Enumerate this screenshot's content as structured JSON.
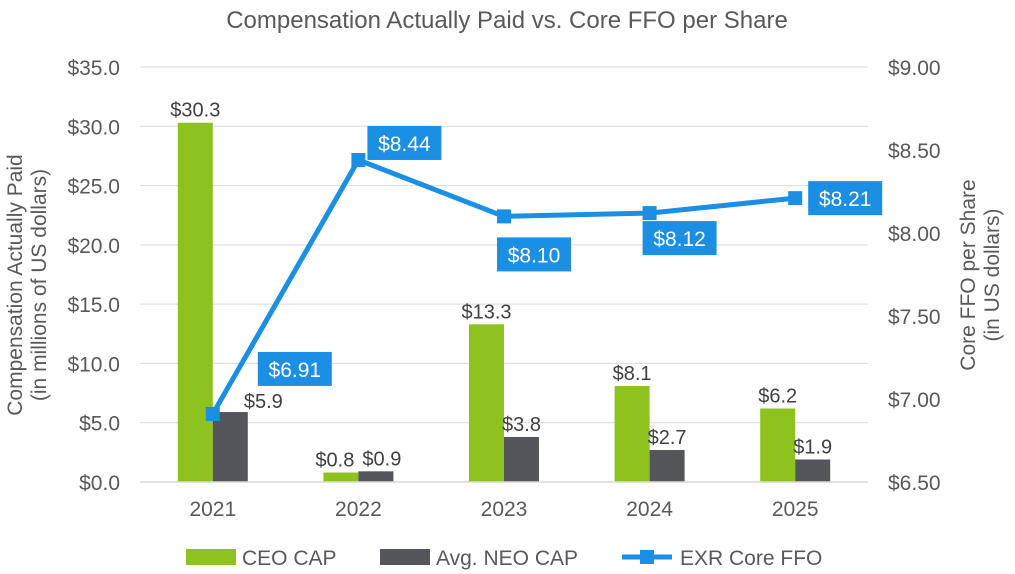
{
  "chart_data": {
    "type": "bar",
    "title": "Compensation Actually Paid vs. Core FFO per Share",
    "categories": [
      "2021",
      "2022",
      "2023",
      "2024",
      "2025"
    ],
    "ylabel": "Compensation Actually Paid\n(in millions of US dollars)",
    "y2label": "Core FFO per Share\n(in US dollars)",
    "ylim": [
      0,
      35
    ],
    "y_ticks": [
      0,
      5,
      10,
      15,
      20,
      25,
      30,
      35
    ],
    "y_tick_labels": [
      "$0.0",
      "$5.0",
      "$10.0",
      "$15.0",
      "$20.0",
      "$25.0",
      "$30.0",
      "$35.0"
    ],
    "y2lim": [
      6.5,
      9.0
    ],
    "y2_ticks": [
      6.5,
      7.0,
      7.5,
      8.0,
      8.5,
      9.0
    ],
    "y2_tick_labels": [
      "$6.50",
      "$7.00",
      "$7.50",
      "$8.00",
      "$8.50",
      "$9.00"
    ],
    "grid": true,
    "legend": "bottom",
    "series": [
      {
        "name": "CEO CAP",
        "kind": "bar",
        "axis": "left",
        "color": "#8dc21f",
        "values": [
          30.3,
          0.8,
          13.3,
          8.1,
          6.2
        ],
        "labels": [
          "$30.3",
          "$0.8",
          "$13.3",
          "$8.1",
          "$6.2"
        ]
      },
      {
        "name": "Avg. NEO CAP",
        "kind": "bar",
        "axis": "left",
        "color": "#55565a",
        "values": [
          5.9,
          0.9,
          3.8,
          2.7,
          1.9
        ],
        "labels": [
          "$5.9",
          "$0.9",
          "$3.8",
          "$2.7",
          "$1.9"
        ]
      },
      {
        "name": "EXR Core FFO",
        "kind": "line",
        "axis": "right",
        "color": "#1a8fe3",
        "values": [
          6.91,
          8.44,
          8.1,
          8.12,
          8.21
        ],
        "labels": [
          "$6.91",
          "$8.44",
          "$8.10",
          "$8.12",
          "$8.21"
        ]
      }
    ]
  }
}
